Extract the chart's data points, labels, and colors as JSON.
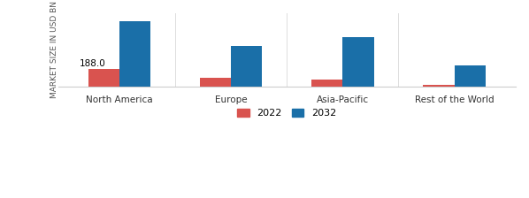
{
  "categories": [
    "North America",
    "Europe",
    "Asia-Pacific",
    "Rest of the World"
  ],
  "values_2022": [
    188.0,
    90.0,
    75.0,
    18.0
  ],
  "values_2032": [
    700.0,
    430.0,
    530.0,
    230.0
  ],
  "color_2022": "#d9534f",
  "color_2032": "#1a6fa8",
  "ylabel": "MARKET SIZE IN USD BN",
  "annotation_text": "188.0",
  "bar_width": 0.28,
  "legend_labels": [
    "2022",
    "2032"
  ],
  "ylim": [
    0,
    780
  ],
  "bg_color": "#ffffff"
}
